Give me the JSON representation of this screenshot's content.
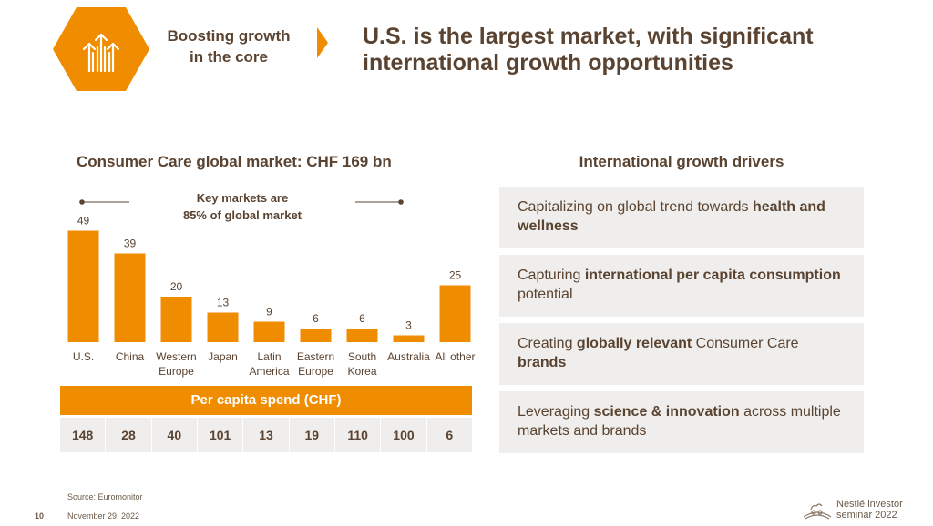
{
  "header": {
    "section_label_line1": "Boosting growth",
    "section_label_line2": "in the core",
    "title_line1": "U.S. is the largest market, with significant",
    "title_line2": "international growth opportunities",
    "accent_color": "#f08c00",
    "icon": "growth-arrows-icon"
  },
  "left": {
    "heading": "Consumer Care global market:  CHF 169 bn"
  },
  "chart_data": {
    "type": "bar",
    "categories": [
      "U.S.",
      "China",
      "Western Europe",
      "Japan",
      "Latin America",
      "Eastern Europe",
      "South Korea",
      "Australia",
      "All other"
    ],
    "category_lines": [
      [
        "U.S."
      ],
      [
        "China"
      ],
      [
        "Western",
        "Europe"
      ],
      [
        "Japan"
      ],
      [
        "Latin",
        "America"
      ],
      [
        "Eastern",
        "Europe"
      ],
      [
        "South",
        "Korea"
      ],
      [
        "Australia"
      ],
      [
        "All other"
      ]
    ],
    "values": [
      49,
      39,
      20,
      13,
      9,
      6,
      6,
      3,
      25
    ],
    "ylim": [
      0,
      50
    ],
    "grid": false,
    "annotation_line1": "Key markets are",
    "annotation_line2": "85% of global market",
    "bar_color": "#f08c00"
  },
  "per_capita": {
    "header": "Per capita spend (CHF)",
    "values": [
      "148",
      "28",
      "40",
      "101",
      "13",
      "19",
      "110",
      "100",
      "6"
    ]
  },
  "right": {
    "heading": "International growth drivers",
    "drivers": [
      {
        "pre": "Capitalizing on global trend towards ",
        "bold": "health and wellness",
        "post": ""
      },
      {
        "pre": "Capturing ",
        "bold": "international per capita consumption",
        "post": " potential"
      },
      {
        "pre": "Creating ",
        "bold": "globally relevant",
        "post": " Consumer Care ",
        "bold2": "brands"
      },
      {
        "pre": "Leveraging ",
        "bold": "science & innovation",
        "post": " across multiple markets and brands"
      }
    ]
  },
  "footer": {
    "source": "Source: Euromonitor",
    "page_number": "10",
    "date": "November 29, 2022",
    "brand_line1": "Nestlé investor",
    "brand_line2": "seminar 2022",
    "logo_icon": "nestle-nest-icon"
  }
}
